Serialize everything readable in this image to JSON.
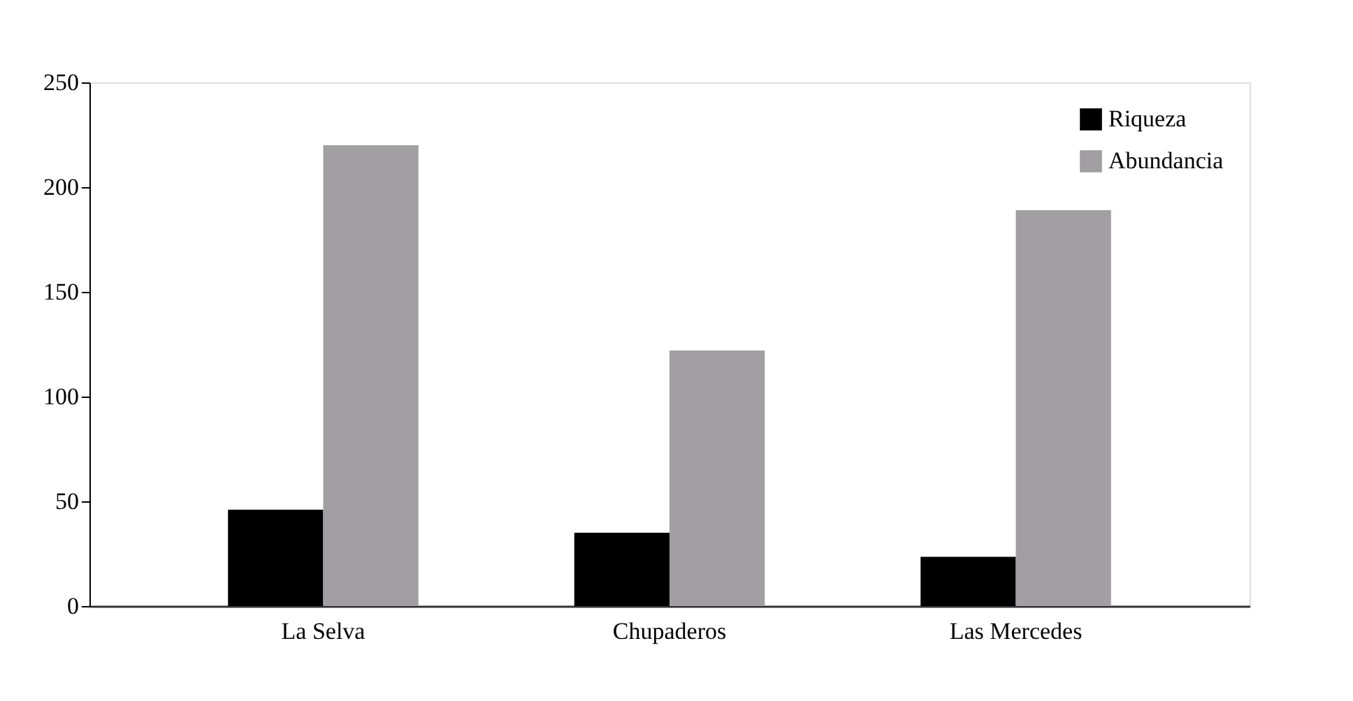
{
  "chart_data": {
    "type": "bar",
    "categories": [
      "La Selva",
      "Chupaderos",
      "Las Mercedes"
    ],
    "series": [
      {
        "name": "Riqueza",
        "color": "#000000",
        "values": [
          46,
          35,
          23.5
        ]
      },
      {
        "name": "Abundancia",
        "color": "#a19fa2",
        "values": [
          220,
          122,
          189
        ]
      }
    ],
    "ylim": [
      0,
      250
    ],
    "yticks": [
      0,
      50,
      100,
      150,
      200,
      250
    ],
    "grid": false,
    "legend": "top right"
  }
}
